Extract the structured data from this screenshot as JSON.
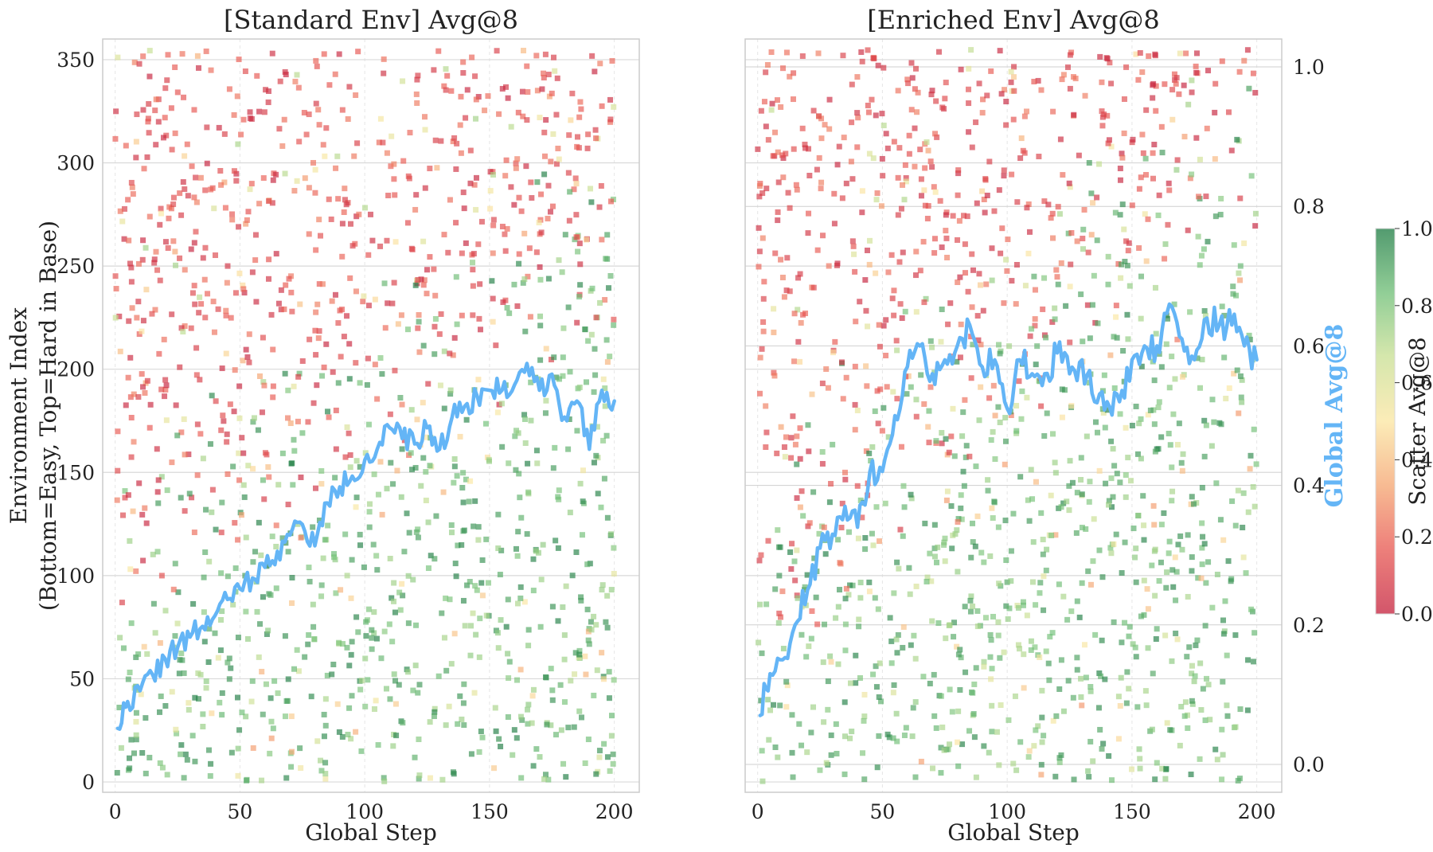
{
  "chart_data": [
    {
      "type": "scatter",
      "title": "[Standard Env] Avg@8",
      "xlabel": "Global Step",
      "ylabel_lines": [
        "Environment Index",
        "(Bottom=Easy, Top=Hard in Base)"
      ],
      "xlim": [
        -5,
        210
      ],
      "ylim": [
        -5,
        360
      ],
      "xticks": [
        "0",
        "50",
        "100",
        "150",
        "200"
      ],
      "yticks": [
        "0",
        "50",
        "100",
        "150",
        "200",
        "250",
        "300",
        "350"
      ],
      "grid": true,
      "scatter_description_points_count": 1400,
      "line_series": {
        "color": "#64b5f6",
        "x": [
          1,
          5,
          10,
          15,
          20,
          25,
          30,
          35,
          40,
          45,
          50,
          55,
          60,
          65,
          70,
          75,
          80,
          85,
          90,
          95,
          100,
          105,
          110,
          115,
          120,
          125,
          130,
          135,
          140,
          145,
          150,
          155,
          160,
          165,
          170,
          175,
          180,
          185,
          190,
          195,
          200
        ],
        "y": [
          0.1,
          0.15,
          0.17,
          0.2,
          0.23,
          0.25,
          0.27,
          0.29,
          0.31,
          0.34,
          0.36,
          0.38,
          0.4,
          0.43,
          0.46,
          0.48,
          0.44,
          0.52,
          0.55,
          0.57,
          0.6,
          0.62,
          0.66,
          0.64,
          0.63,
          0.66,
          0.62,
          0.68,
          0.7,
          0.72,
          0.73,
          0.73,
          0.74,
          0.78,
          0.73,
          0.76,
          0.68,
          0.71,
          0.62,
          0.73,
          0.71
        ]
      }
    },
    {
      "type": "scatter",
      "title": "[Enriched Env] Avg@8",
      "xlabel": "Global Step",
      "twin_ylabel": "Global Avg@8",
      "twin_ylabel_color": "#64b5f6",
      "xlim": [
        -5,
        210
      ],
      "ylim": [
        -5,
        360
      ],
      "twin_ylim": [
        -0.04,
        1.04
      ],
      "xticks": [
        "0",
        "50",
        "100",
        "150",
        "200"
      ],
      "twin_yticks": [
        "0.0",
        "0.2",
        "0.4",
        "0.6",
        "0.8",
        "1.0"
      ],
      "grid": true,
      "line_series": {
        "color": "#64b5f6",
        "x": [
          1,
          5,
          10,
          15,
          20,
          25,
          30,
          35,
          40,
          45,
          50,
          55,
          60,
          65,
          70,
          75,
          80,
          85,
          90,
          95,
          100,
          105,
          110,
          115,
          120,
          125,
          130,
          135,
          140,
          145,
          150,
          155,
          160,
          165,
          170,
          175,
          180,
          185,
          190,
          195,
          200
        ],
        "y": [
          0.07,
          0.13,
          0.15,
          0.2,
          0.25,
          0.31,
          0.33,
          0.37,
          0.34,
          0.42,
          0.42,
          0.5,
          0.57,
          0.6,
          0.56,
          0.58,
          0.6,
          0.63,
          0.57,
          0.58,
          0.51,
          0.58,
          0.56,
          0.56,
          0.59,
          0.56,
          0.58,
          0.52,
          0.52,
          0.52,
          0.58,
          0.6,
          0.6,
          0.66,
          0.61,
          0.58,
          0.64,
          0.63,
          0.63,
          0.6,
          0.58
        ]
      }
    }
  ],
  "colorbar": {
    "label": "Scatter Avg@8",
    "ticks": [
      "0.0",
      "0.2",
      "0.4",
      "0.6",
      "0.8",
      "1.0"
    ],
    "colormap": [
      "#c41e3a",
      "#e8564f",
      "#f5a36e",
      "#fbe6a0",
      "#c7df91",
      "#6fbf75",
      "#1a7a40"
    ]
  }
}
